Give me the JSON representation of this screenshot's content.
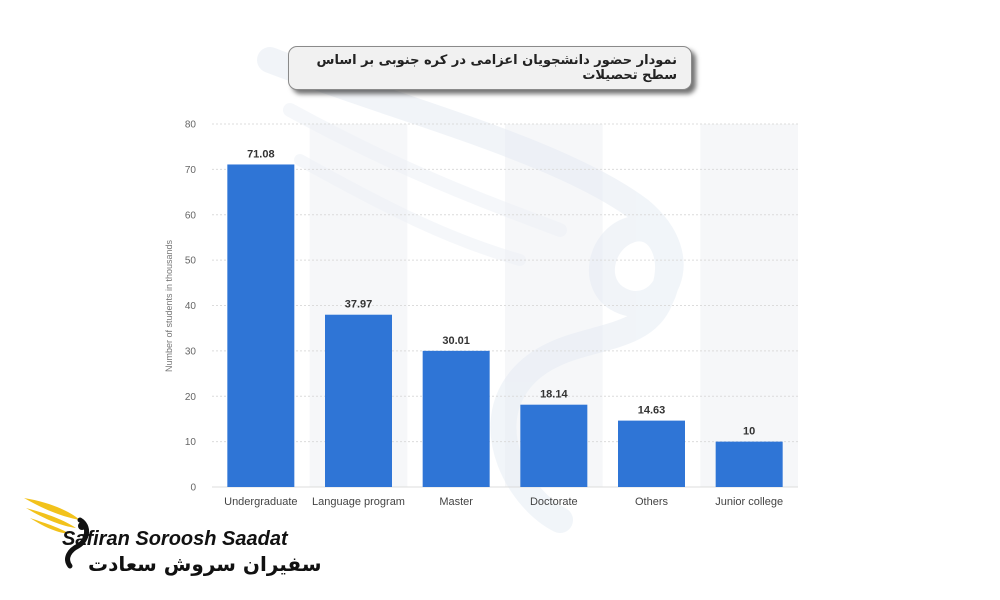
{
  "chart_data": {
    "type": "bar",
    "title": "نمودار حضور دانشجویان اعزامی در کره جنوبی بر اساس سطح تحصیلات",
    "ylabel": "Number of students in thousands",
    "xlabel": "",
    "categories": [
      "Undergraduate",
      "Language program",
      "Master",
      "Doctorate",
      "Others",
      "Junior college"
    ],
    "values": [
      71.08,
      37.97,
      30.01,
      18.14,
      14.63,
      10
    ],
    "value_labels": [
      "71.08",
      "37.97",
      "30.01",
      "18.14",
      "14.63",
      "10"
    ],
    "ylim": [
      0,
      80
    ],
    "yticks": [
      "0",
      "10",
      "20",
      "30",
      "40",
      "50",
      "60",
      "70",
      "80"
    ],
    "grid": true,
    "bar_color": "#2f75d6"
  },
  "logo": {
    "name_en": "Safiran Soroosh Saadat",
    "name_fa": "سفیران سروش سعادت",
    "accent_color": "#f2c21b"
  }
}
